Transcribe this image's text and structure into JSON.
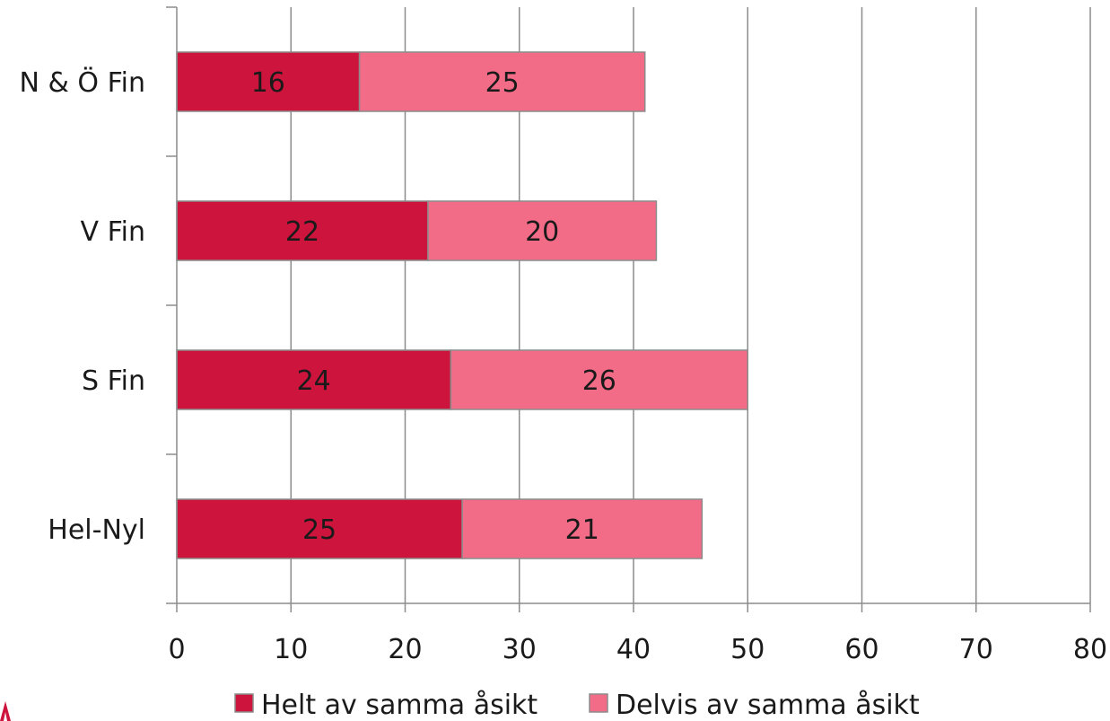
{
  "chart_data": {
    "type": "bar",
    "orientation": "horizontal",
    "stacked": true,
    "title": "",
    "xlabel": "",
    "ylabel": "",
    "xlim": [
      0,
      80
    ],
    "x_ticks": [
      0,
      10,
      20,
      30,
      40,
      50,
      60,
      70,
      80
    ],
    "x_tick_labels": [
      "0",
      "10",
      "20",
      "30",
      "40",
      "50",
      "60",
      "70",
      "80"
    ],
    "grid": "vertical major gridlines",
    "categories": [
      "N & Ö Fin",
      "V Fin",
      "S Fin",
      "Hel-Nyl"
    ],
    "series": [
      {
        "name": "Helt av samma åsikt",
        "values": [
          16,
          22,
          24,
          25
        ],
        "color": "#cc143c"
      },
      {
        "name": "Delvis av samma åsikt",
        "values": [
          25,
          20,
          26,
          21
        ],
        "color": "#f26b87"
      }
    ],
    "data_labels": true,
    "legend_position": "bottom"
  }
}
